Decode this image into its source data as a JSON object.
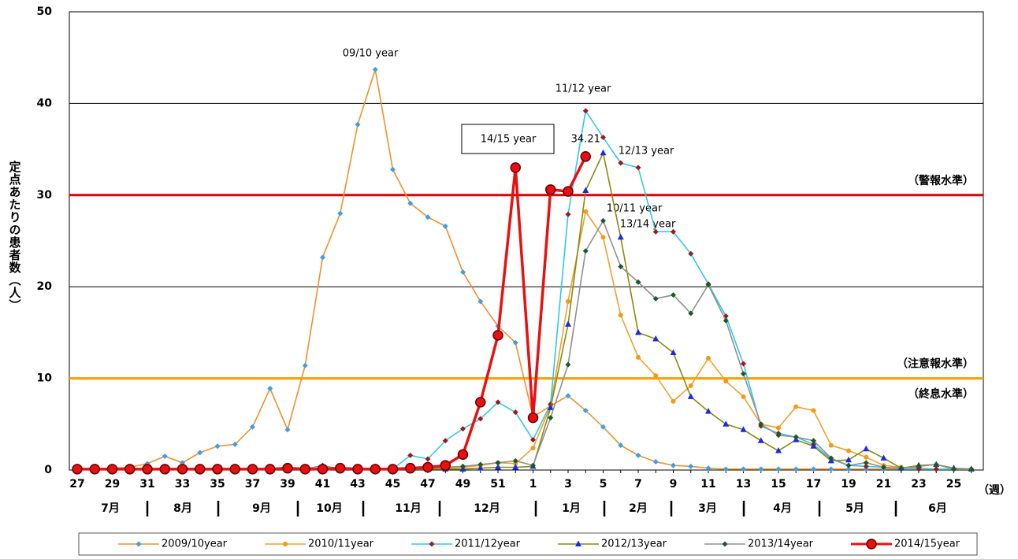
{
  "chart_data": {
    "type": "line",
    "y_label": "定点あたりの患者数（人）",
    "x_unit": "（週）",
    "categories": [
      "27",
      null,
      "29",
      null,
      "31",
      null,
      "33",
      null,
      "35",
      null,
      "37",
      null,
      "39",
      null,
      "41",
      null,
      "43",
      null,
      "45",
      null,
      "47",
      null,
      "49",
      null,
      "51",
      null,
      "1",
      null,
      "3",
      null,
      "5",
      null,
      "7",
      null,
      "9",
      null,
      "11",
      null,
      "13",
      null,
      "15",
      null,
      "17",
      null,
      "19",
      null,
      "21",
      null,
      "23",
      null,
      "25",
      null
    ],
    "months": [
      "7月",
      "8月",
      "9月",
      "10月",
      "11月",
      "12月",
      "1月",
      "2月",
      "3月",
      "4月",
      "5月",
      "6月"
    ],
    "ylim": [
      0,
      50
    ],
    "yticks": [
      0,
      10,
      20,
      30,
      40,
      50
    ],
    "grid": true,
    "reference_lines": [
      {
        "value": 30,
        "label": "（警報水準）",
        "color": "#e00000"
      },
      {
        "value": 10,
        "label": "（注意報水準）",
        "color": "#f5a000"
      }
    ],
    "end_level_label": "（終息水準）",
    "annotations": [
      "09/10 year",
      "11/12 year",
      "12/13 year",
      "10/11 year",
      "13/14 year",
      "14/15 year"
    ],
    "series": [
      {
        "name": "2009/10year",
        "color": "#f0902c",
        "marker_color": "#3ba0e8",
        "marker": "diamond",
        "values": [
          0.1,
          0.1,
          0.2,
          0.3,
          0.7,
          1.5,
          0.8,
          1.9,
          2.6,
          2.8,
          4.7,
          8.9,
          4.4,
          11.4,
          23.2,
          28.0,
          37.7,
          43.7,
          32.8,
          29.1,
          27.6,
          26.6,
          21.6,
          18.4,
          15.7,
          13.9,
          5.8,
          7.0,
          8.1,
          6.5,
          4.7,
          2.7,
          1.6,
          0.9,
          0.5,
          0.4,
          0.2,
          0.1,
          0.1,
          0.1,
          0.1,
          0.1,
          0.1,
          0.1,
          0.1,
          0.1,
          0.1,
          0.1,
          0.1,
          0.1,
          0.1,
          0.1
        ]
      },
      {
        "name": "2010/11year",
        "color": "#f0a030",
        "marker_color": "#f59a10",
        "marker": "circle",
        "values": [
          0.1,
          0.1,
          0.1,
          0.1,
          0.1,
          0.1,
          0.1,
          0.1,
          0.1,
          0.1,
          0.1,
          0.1,
          0.1,
          0.1,
          0.1,
          0.1,
          0.1,
          0.1,
          0.1,
          0.1,
          0.1,
          0.2,
          0.3,
          0.5,
          0.8,
          0.7,
          2.4,
          7.0,
          18.4,
          28.2,
          25.4,
          16.9,
          12.3,
          10.3,
          7.5,
          9.2,
          12.2,
          9.7,
          8.0,
          5.0,
          4.6,
          6.9,
          6.5,
          2.7,
          2.1,
          1.4,
          0.5,
          0.3,
          0.2,
          0.1,
          0.1,
          0.1
        ]
      },
      {
        "name": "2011/12year",
        "color": "#30c8e8",
        "marker_color": "#9a1a1a",
        "marker": "diamond",
        "values": [
          0.1,
          0.1,
          0.1,
          0.1,
          0.1,
          0.1,
          0.1,
          0.1,
          0.1,
          0.1,
          0.1,
          0.1,
          0.1,
          0.1,
          0.1,
          0.1,
          0.1,
          0.1,
          0.1,
          1.6,
          1.2,
          3.2,
          4.5,
          5.6,
          7.4,
          6.3,
          3.3,
          7.2,
          27.9,
          39.2,
          36.3,
          33.5,
          33.0,
          26.0,
          26.0,
          23.6,
          20.3,
          16.8,
          11.6,
          4.8,
          4.0,
          3.6,
          2.8,
          1.2,
          0.5,
          0.4,
          0.3,
          0.1,
          0.1,
          0.1,
          0.1,
          0.1
        ]
      },
      {
        "name": "2012/13year",
        "color": "#8a8a10",
        "marker_color": "#1a2ae0",
        "marker": "triangle",
        "values": [
          0.1,
          0.1,
          0.1,
          0.1,
          0.1,
          0.1,
          0.1,
          0.1,
          0.1,
          0.1,
          0.1,
          0.1,
          0.1,
          0.1,
          0.1,
          0.1,
          0.1,
          0.1,
          0.1,
          0.1,
          0.1,
          0.1,
          0.1,
          0.2,
          0.3,
          0.3,
          0.4,
          6.8,
          15.9,
          30.5,
          34.6,
          25.4,
          15.0,
          14.3,
          12.8,
          8.0,
          6.4,
          5.0,
          4.4,
          3.2,
          2.1,
          3.3,
          2.6,
          1.0,
          1.1,
          2.3,
          1.3,
          0.2,
          0.5,
          0.6,
          0.2,
          0.1
        ]
      },
      {
        "name": "2013/14year",
        "color": "#909090",
        "marker_color": "#1a5a2a",
        "marker": "diamond",
        "values": [
          0.1,
          0.1,
          0.1,
          0.1,
          0.1,
          0.1,
          0.1,
          0.1,
          0.1,
          0.1,
          0.1,
          0.1,
          0.2,
          0.1,
          0.5,
          0.1,
          0.1,
          0.1,
          0.1,
          0.1,
          0.2,
          0.3,
          0.4,
          0.6,
          0.8,
          1.0,
          0.5,
          5.7,
          11.5,
          23.9,
          27.2,
          22.2,
          20.5,
          18.7,
          19.1,
          17.1,
          20.2,
          16.3,
          10.5,
          5.0,
          3.8,
          3.6,
          3.2,
          1.3,
          0.5,
          0.8,
          0.3,
          0.2,
          0.4,
          0.6,
          0.1,
          0.1
        ]
      },
      {
        "name": "2014/15year",
        "color": "#e81010",
        "marker_color": "#e81010",
        "marker": "bigcircle",
        "values": [
          0.1,
          0.1,
          0.1,
          0.1,
          0.1,
          0.1,
          0.1,
          0.1,
          0.1,
          0.1,
          0.1,
          0.1,
          0.2,
          0.1,
          0.1,
          0.2,
          0.1,
          0.1,
          0.1,
          0.2,
          0.3,
          0.5,
          1.7,
          7.4,
          14.7,
          33.0,
          5.7,
          30.6,
          30.4,
          34.21,
          null,
          null,
          null,
          null,
          null,
          null,
          null,
          null,
          null,
          null,
          null,
          null,
          null,
          null,
          null,
          null,
          null,
          null,
          null,
          null,
          null,
          null
        ]
      }
    ]
  }
}
